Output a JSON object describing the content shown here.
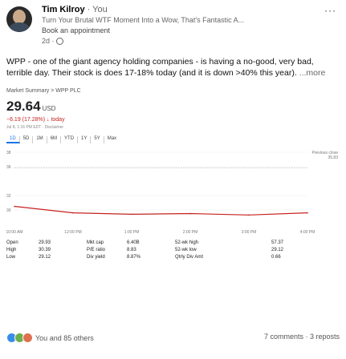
{
  "author": {
    "name": "Tim Kilroy",
    "degree": "· You",
    "headline": "Turn Your Brutal WTF Moment Into a Wow, That's Fantastic A...",
    "cta": "Book an appointment",
    "time": "2d ·",
    "visibility_icon": "globe-icon",
    "menu_icon": "more-options-icon"
  },
  "post": {
    "text": "WPP - one of the giant agency holding companies - is having a no-good, very bad, terrible day. Their stock is does 17-18% today (and it is down >40% this year).",
    "more": "...more"
  },
  "stock_card": {
    "breadcrumb": "Market Summary > WPP PLC",
    "price": "29.64",
    "currency": "USD",
    "change": "−6.19 (17.28%) ↓ today",
    "footnote": "Jul 8, 1:16 PM EDT · Disclaimer",
    "ranges": [
      "1D",
      "5D",
      "1M",
      "6M",
      "YTD",
      "1Y",
      "5Y",
      "Max"
    ],
    "active_range": "1D",
    "y_labels": [
      "38",
      "36",
      "32",
      "30"
    ],
    "prev_close_label": "Previous close",
    "prev_close_value": "35.83",
    "x_labels": [
      "10:00 AM",
      "12:00 PM",
      "1:00 PM",
      "2:00 PM",
      "3:00 PM",
      "4:00 PM"
    ],
    "stats": [
      [
        "Open",
        "29.93",
        "Mkt cap",
        "6.40B",
        "52-wk high",
        "57.37"
      ],
      [
        "High",
        "30.39",
        "P/E ratio",
        "8.83",
        "52-wk low",
        "29.12"
      ],
      [
        "Low",
        "29.12",
        "Div yield",
        "8.87%",
        "Qtrly Div Amt",
        "0.66"
      ]
    ]
  },
  "chart_data": {
    "type": "line",
    "title": "",
    "x": [
      "10:00 AM",
      "12:00 PM",
      "1:00 PM",
      "2:00 PM",
      "3:00 PM",
      "4:00 PM"
    ],
    "series": [
      {
        "values": [
          30.5,
          29.6,
          29.4,
          29.5,
          29.3,
          29.6
        ]
      }
    ],
    "prev_close": 35.83,
    "ylim": [
      28,
      38
    ],
    "line_color": "#c5221f"
  },
  "footer": {
    "reactions": "You and 85 others",
    "counts": "7 comments · 3 reposts",
    "reaction_icons": [
      "like-icon",
      "celebrate-icon",
      "love-icon"
    ]
  }
}
